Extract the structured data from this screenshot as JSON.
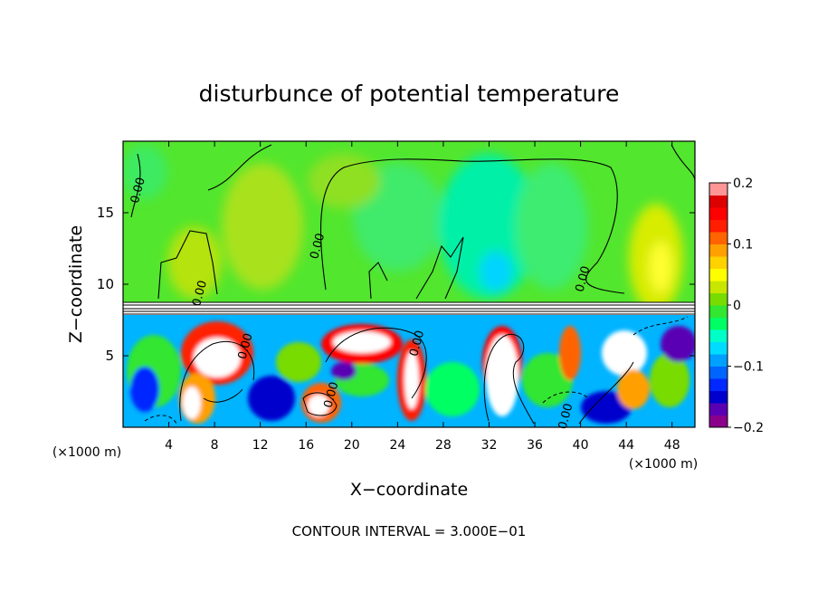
{
  "chart_data": {
    "type": "heatmap",
    "title": "disturbunce of potential temperature",
    "xlabel": "X−coordinate",
    "ylabel": "Z−coordinate",
    "x_unit_left": "(×1000 m)",
    "x_unit_right": "(×1000 m)",
    "xlim": [
      0,
      50
    ],
    "ylim": [
      0,
      20
    ],
    "x_ticks": [
      {
        "value": 4,
        "label": "4"
      },
      {
        "value": 8,
        "label": "8"
      },
      {
        "value": 12,
        "label": "12"
      },
      {
        "value": 16,
        "label": "16"
      },
      {
        "value": 20,
        "label": "20"
      },
      {
        "value": 24,
        "label": "24"
      },
      {
        "value": 28,
        "label": "28"
      },
      {
        "value": 32,
        "label": "32"
      },
      {
        "value": 36,
        "label": "36"
      },
      {
        "value": 40,
        "label": "40"
      },
      {
        "value": 44,
        "label": "44"
      },
      {
        "value": 48,
        "label": "48"
      }
    ],
    "y_ticks": [
      {
        "value": 5,
        "label": "5"
      },
      {
        "value": 10,
        "label": "10"
      },
      {
        "value": 15,
        "label": "15"
      }
    ],
    "colorbar": {
      "range": [
        -0.2,
        0.2
      ],
      "ticks": [
        {
          "value": 0.2,
          "label": "0.2"
        },
        {
          "value": 0.1,
          "label": "0.1"
        },
        {
          "value": 0,
          "label": "0"
        },
        {
          "value": -0.1,
          "label": "−0.1"
        },
        {
          "value": -0.2,
          "label": "−0.2"
        }
      ],
      "colors": [
        "#8b008b",
        "#5a00b4",
        "#0000cd",
        "#0028ff",
        "#0064ff",
        "#00a0ff",
        "#00dcff",
        "#00ffc8",
        "#00ff64",
        "#32e632",
        "#78dc00",
        "#c8e600",
        "#ffff00",
        "#ffd200",
        "#ffa000",
        "#ff6400",
        "#ff1e00",
        "#ff0000",
        "#dc0000",
        "#ff9696"
      ]
    },
    "contour_labels": [
      {
        "x": 1.6,
        "z": 16.5,
        "label": "0.00"
      },
      {
        "x": 17.3,
        "z": 12.6,
        "label": "0.00"
      },
      {
        "x": 40.5,
        "z": 10.3,
        "label": "0.00"
      },
      {
        "x": 7.0,
        "z": 9.3,
        "label": "0.00"
      },
      {
        "x": 11.0,
        "z": 5.6,
        "label": "0.00"
      },
      {
        "x": 26.0,
        "z": 5.8,
        "label": "0.00"
      },
      {
        "x": 18.5,
        "z": 2.2,
        "label": "0.00"
      },
      {
        "x": 39.0,
        "z": 0.7,
        "label": "0.00"
      }
    ],
    "footer": "CONTOUR INTERVAL = 3.000E−01"
  }
}
